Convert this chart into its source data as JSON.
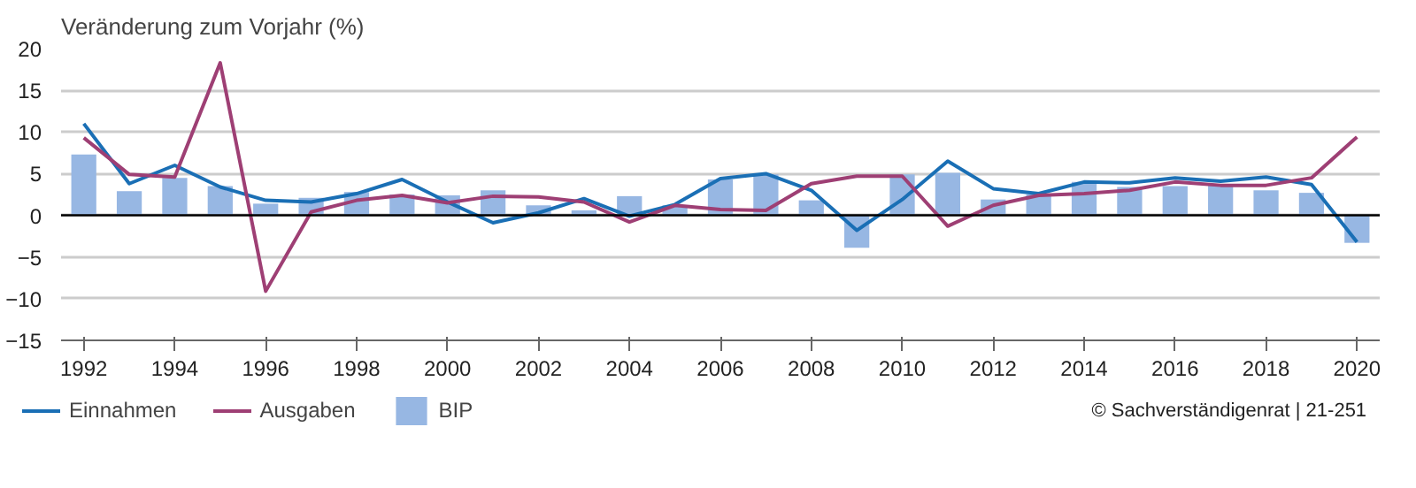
{
  "chart_data": {
    "type": "bar",
    "ylabel": "Veränderung zum Vorjahr (%)",
    "x": [
      1992,
      1993,
      1994,
      1995,
      1996,
      1997,
      1998,
      1999,
      2000,
      2001,
      2002,
      2003,
      2004,
      2005,
      2006,
      2007,
      2008,
      2009,
      2010,
      2011,
      2012,
      2013,
      2014,
      2015,
      2016,
      2017,
      2018,
      2019,
      2020
    ],
    "series": [
      {
        "name": "Einnahmen",
        "type": "line",
        "color": "#1a6fb5",
        "values": [
          11.0,
          3.8,
          6.0,
          3.4,
          1.8,
          1.6,
          2.6,
          4.3,
          1.6,
          -0.9,
          0.3,
          2.0,
          -0.1,
          1.3,
          4.4,
          5.0,
          3.0,
          -1.8,
          1.9,
          6.5,
          3.2,
          2.6,
          4.0,
          3.9,
          4.5,
          4.1,
          4.6,
          3.7,
          -3.2
        ]
      },
      {
        "name": "Ausgaben",
        "type": "line",
        "color": "#9e3f74",
        "values": [
          9.3,
          4.9,
          4.6,
          18.3,
          -9.1,
          0.4,
          1.8,
          2.4,
          1.5,
          2.3,
          2.2,
          1.6,
          -0.8,
          1.2,
          0.7,
          0.6,
          3.8,
          4.7,
          4.7,
          -1.3,
          1.2,
          2.4,
          2.6,
          3.0,
          4.0,
          3.6,
          3.6,
          4.5,
          9.4
        ]
      },
      {
        "name": "BIP",
        "type": "bar",
        "color": "#97b7e3",
        "values": [
          7.3,
          2.9,
          4.5,
          3.5,
          1.4,
          2.1,
          2.8,
          2.5,
          2.4,
          3.0,
          1.2,
          0.6,
          2.3,
          1.2,
          4.3,
          4.9,
          1.8,
          -3.9,
          4.9,
          5.1,
          1.9,
          2.5,
          4.0,
          3.4,
          3.5,
          3.7,
          3.0,
          2.7,
          -3.3
        ]
      }
    ],
    "xlim": [
      1991.5,
      2020.5
    ],
    "xticks": [
      1992,
      1994,
      1996,
      1998,
      2000,
      2002,
      2004,
      2006,
      2008,
      2010,
      2012,
      2014,
      2016,
      2018,
      2020
    ],
    "ylim": [
      -15,
      20
    ],
    "yticks": [
      -15,
      -10,
      -5,
      0,
      5,
      10,
      15,
      20
    ],
    "grid": "y",
    "legend": "bottom left",
    "annotations": [
      "© Sachverständigenrat | 21-251"
    ]
  }
}
